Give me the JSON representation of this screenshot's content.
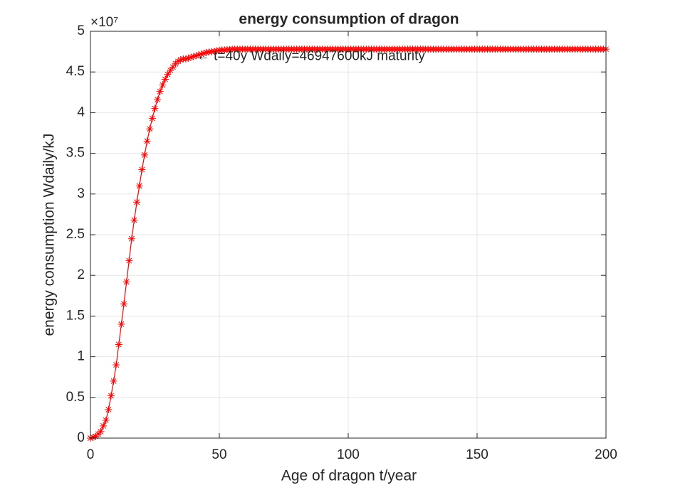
{
  "chart_data": {
    "type": "line",
    "title": "energy consumption of dragon",
    "x_label": "Age of dragon  t/year",
    "y_label": "energy consumption Wdaily/kJ",
    "y_multiplier": "×10⁷",
    "annotation": {
      "text": "← t=40y Wdaily=46947600kJ maturity",
      "x": 40,
      "y": 4.69
    },
    "x": [
      0,
      1,
      2,
      3,
      4,
      5,
      6,
      7,
      8,
      9,
      10,
      11,
      12,
      13,
      14,
      15,
      16,
      17,
      18,
      19,
      20,
      21,
      22,
      23,
      24,
      25,
      26,
      27,
      28,
      29,
      30,
      31,
      32,
      33,
      34,
      35,
      36,
      37,
      38,
      39,
      40,
      41,
      42,
      43,
      44,
      45,
      46,
      47,
      48,
      49,
      50,
      51,
      52,
      53,
      54,
      55,
      56,
      57,
      58,
      59,
      60,
      61,
      62,
      63,
      64,
      65,
      66,
      67,
      68,
      69,
      70,
      71,
      72,
      73,
      74,
      75,
      76,
      77,
      78,
      79,
      80,
      81,
      82,
      83,
      84,
      85,
      86,
      87,
      88,
      89,
      90,
      91,
      92,
      93,
      94,
      95,
      96,
      97,
      98,
      99,
      100,
      101,
      102,
      103,
      104,
      105,
      106,
      107,
      108,
      109,
      110,
      111,
      112,
      113,
      114,
      115,
      116,
      117,
      118,
      119,
      120,
      121,
      122,
      123,
      124,
      125,
      126,
      127,
      128,
      129,
      130,
      131,
      132,
      133,
      134,
      135,
      136,
      137,
      138,
      139,
      140,
      141,
      142,
      143,
      144,
      145,
      146,
      147,
      148,
      149,
      150,
      151,
      152,
      153,
      154,
      155,
      156,
      157,
      158,
      159,
      160,
      161,
      162,
      163,
      164,
      165,
      166,
      167,
      168,
      169,
      170,
      171,
      172,
      173,
      174,
      175,
      176,
      177,
      178,
      179,
      180,
      181,
      182,
      183,
      184,
      185,
      186,
      187,
      188,
      189,
      190,
      191,
      192,
      193,
      194,
      195,
      196,
      197,
      198,
      199,
      200
    ],
    "series": [
      {
        "color": "#ff0000",
        "marker": "asterisk",
        "values": [
          0,
          0.01,
          0.02,
          0.05,
          0.08,
          0.15,
          0.22,
          0.35,
          0.52,
          0.7,
          0.9,
          1.15,
          1.4,
          1.65,
          1.92,
          2.18,
          2.45,
          2.68,
          2.9,
          3.1,
          3.3,
          3.48,
          3.65,
          3.8,
          3.93,
          4.05,
          4.16,
          4.26,
          4.34,
          4.41,
          4.47,
          4.52,
          4.56,
          4.6,
          4.63,
          4.65,
          4.66,
          4.66,
          4.67,
          4.68,
          4.69,
          4.7,
          4.71,
          4.72,
          4.73,
          4.74,
          4.745,
          4.75,
          4.755,
          4.76,
          4.765,
          4.77,
          4.77,
          4.775,
          4.775,
          4.78,
          4.78,
          4.78,
          4.78,
          4.78,
          4.78,
          4.78,
          4.78,
          4.78,
          4.78,
          4.78,
          4.78,
          4.78,
          4.78,
          4.78,
          4.78,
          4.78,
          4.78,
          4.78,
          4.78,
          4.78,
          4.78,
          4.78,
          4.78,
          4.78,
          4.78,
          4.78,
          4.78,
          4.78,
          4.78,
          4.78,
          4.78,
          4.78,
          4.78,
          4.78,
          4.78,
          4.78,
          4.78,
          4.78,
          4.78,
          4.78,
          4.78,
          4.78,
          4.78,
          4.78,
          4.78,
          4.78,
          4.78,
          4.78,
          4.78,
          4.78,
          4.78,
          4.78,
          4.78,
          4.78,
          4.78,
          4.78,
          4.78,
          4.78,
          4.78,
          4.78,
          4.78,
          4.78,
          4.78,
          4.78,
          4.78,
          4.78,
          4.78,
          4.78,
          4.78,
          4.78,
          4.78,
          4.78,
          4.78,
          4.78,
          4.78,
          4.78,
          4.78,
          4.78,
          4.78,
          4.78,
          4.78,
          4.78,
          4.78,
          4.78,
          4.78,
          4.78,
          4.78,
          4.78,
          4.78,
          4.78,
          4.78,
          4.78,
          4.78,
          4.78,
          4.78,
          4.78,
          4.78,
          4.78,
          4.78,
          4.78,
          4.78,
          4.78,
          4.78,
          4.78,
          4.78,
          4.78,
          4.78,
          4.78,
          4.78,
          4.78,
          4.78,
          4.78,
          4.78,
          4.78,
          4.78,
          4.78,
          4.78,
          4.78,
          4.78,
          4.78,
          4.78,
          4.78,
          4.78,
          4.78,
          4.78,
          4.78,
          4.78,
          4.78,
          4.78,
          4.78,
          4.78,
          4.78,
          4.78,
          4.78,
          4.78,
          4.78,
          4.78,
          4.78,
          4.78,
          4.78,
          4.78,
          4.78,
          4.78,
          4.78,
          4.78
        ]
      }
    ],
    "xlim": [
      0,
      200
    ],
    "xticks": [
      0,
      50,
      100,
      150,
      200
    ],
    "ylim": [
      0,
      5
    ],
    "yticks": [
      0,
      0.5,
      1,
      1.5,
      2,
      2.5,
      3,
      3.5,
      4,
      4.5,
      5
    ],
    "grid": true
  }
}
